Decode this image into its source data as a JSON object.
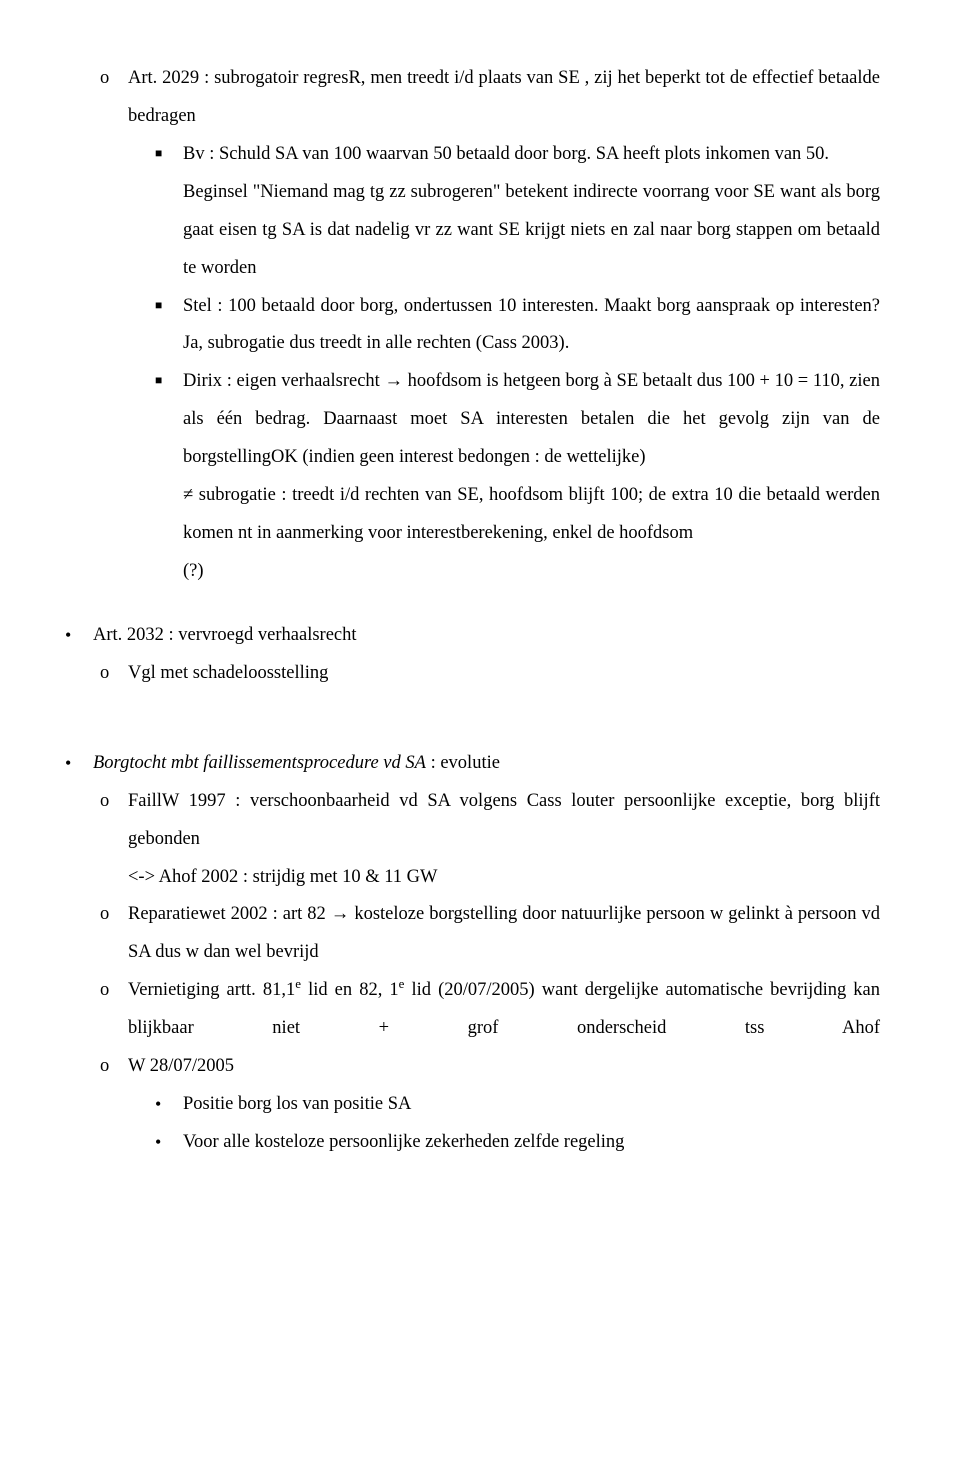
{
  "p1a": "Art. 2029 : subrogatoir regresR, men treedt i/d plaats van SE , zij het beperkt tot de effectief betaalde bedragen",
  "p1b": "Bv : Schuld SA van 100 waarvan 50 betaald door borg. SA heeft plots inkomen van 50.",
  "p1c": "Beginsel \"Niemand mag tg zz subrogeren\" betekent indirecte voorrang voor SE want als borg gaat eisen tg SA is dat nadelig vr zz want SE krijgt niets en zal naar borg stappen om betaald te worden",
  "p1d": "Stel : 100 betaald door borg, ondertussen 10 interesten. Maakt borg aanspraak op interesten? Ja, subrogatie dus treedt in alle rechten (Cass 2003).",
  "p1e": "Dirix : eigen verhaalsrecht → hoofdsom is hetgeen borg à SE betaalt dus 100 + 10 = 110, zien als één bedrag. Daarnaast moet SA interesten betalen die het gevolg zijn van de borgstellingOK (indien geen interest bedongen : de wettelijke)",
  "p1f": "≠ subrogatie : treedt i/d rechten van SE, hoofdsom blijft 100; de extra 10 die betaald werden komen nt in aanmerking voor interestberekening, enkel de hoofdsom",
  "p1g": "(?)",
  "p2a": "Art. 2032 : vervroegd verhaalsrecht",
  "p2b": "Vgl met schadeloosstelling",
  "p3t": "Borgtocht mbt faillissementsprocedure vd SA",
  "p3t2": " : evolutie",
  "p3a": "FaillW 1997 : verschoonbaarheid vd SA volgens Cass louter persoonlijke exceptie, borg blijft gebonden",
  "p3b": "<-> Ahof 2002 : strijdig met 10 & 11 GW",
  "p3c": "Reparatiewet 2002 : art 82 → kosteloze borgstelling door natuurlijke persoon w gelinkt à persoon vd SA dus w dan wel bevrijd",
  "p3d1": "Vernietiging artt. 81,1",
  "p3d2": " lid en 82, 1",
  "p3d3": " lid (20/07/2005) want dergelijke automatische bevrijding kan blijkbaar niet + grof onderscheid tss Ahof",
  "p3e": "W 28/07/2005",
  "p3f": "Positie borg los van positie SA",
  "p3g": "Voor alle kosteloze persoonlijke zekerheden zelfde regeling",
  "sup_e": "e",
  "mk_o": "o",
  "mk_sq": "■",
  "mk_bu": "•"
}
